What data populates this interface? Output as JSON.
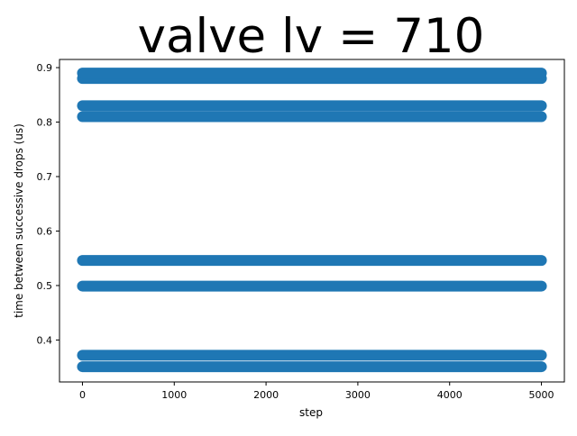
{
  "chart_data": {
    "type": "scatter",
    "title": "valve lv = 710",
    "xlabel": "step",
    "ylabel": "time between successive drops (us)",
    "xlim": [
      -250,
      5250
    ],
    "ylim": [
      0.323,
      0.915
    ],
    "xticks": [
      0,
      1000,
      2000,
      3000,
      4000,
      5000
    ],
    "xtick_labels": [
      "0",
      "1000",
      "2000",
      "3000",
      "4000",
      "5000"
    ],
    "yticks": [
      0.4,
      0.5,
      0.6,
      0.7,
      0.8,
      0.9
    ],
    "ytick_labels": [
      "0.4",
      "0.5",
      "0.6",
      "0.7",
      "0.8",
      "0.9"
    ],
    "grid": false,
    "marker_color": "#1f77b4",
    "x_range": [
      0,
      5000
    ],
    "y_levels": [
      0.351,
      0.372,
      0.499,
      0.546,
      0.81,
      0.83,
      0.88,
      0.89
    ]
  }
}
